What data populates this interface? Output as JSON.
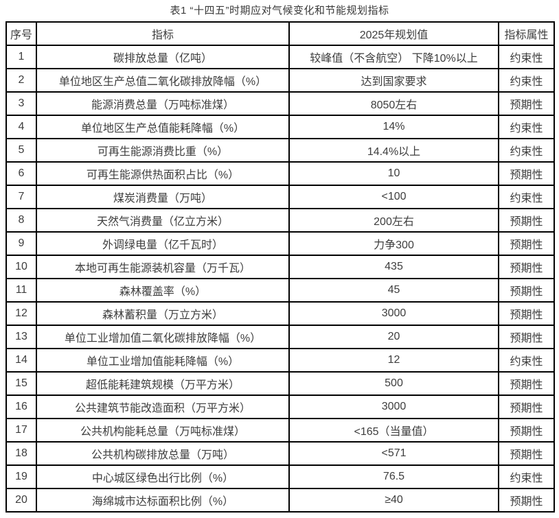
{
  "page": {
    "title": "表1 “十四五”时期应对气候变化和节能规划指标"
  },
  "table": {
    "headers": [
      "序号",
      "指标",
      "2025年规划值",
      "指标属性"
    ],
    "rows": [
      {
        "no": "1",
        "indicator": "碳排放总量（亿吨）",
        "value": "较峰值（不含航空） 下降10%以上",
        "attribute": "约束性"
      },
      {
        "no": "2",
        "indicator": "单位地区生产总值二氧化碳排放降幅（%）",
        "value": "达到国家要求",
        "attribute": "约束性"
      },
      {
        "no": "3",
        "indicator": "能源消费总量（万吨标准煤）",
        "value": "8050左右",
        "attribute": "预期性"
      },
      {
        "no": "4",
        "indicator": "单位地区生产总值能耗降幅（%）",
        "value": "14%",
        "attribute": "约束性"
      },
      {
        "no": "5",
        "indicator": "可再生能源消费比重（%）",
        "value": "14.4%以上",
        "attribute": "约束性"
      },
      {
        "no": "6",
        "indicator": "可再生能源供热面积占比（%）",
        "value": "10",
        "attribute": "预期性"
      },
      {
        "no": "7",
        "indicator": "煤炭消费量（万吨）",
        "value": "<100",
        "attribute": "约束性"
      },
      {
        "no": "8",
        "indicator": "天然气消费量（亿立方米）",
        "value": "200左右",
        "attribute": "预期性"
      },
      {
        "no": "9",
        "indicator": "外调绿电量（亿千瓦时）",
        "value": "力争300",
        "attribute": "预期性"
      },
      {
        "no": "10",
        "indicator": "本地可再生能源装机容量（万千瓦）",
        "value": "435",
        "attribute": "预期性"
      },
      {
        "no": "11",
        "indicator": "森林覆盖率（%）",
        "value": "45",
        "attribute": "预期性"
      },
      {
        "no": "12",
        "indicator": "森林蓄积量（万立方米）",
        "value": "3000",
        "attribute": "预期性"
      },
      {
        "no": "13",
        "indicator": "单位工业增加值二氧化碳排放降幅（%）",
        "value": "20",
        "attribute": "预期性"
      },
      {
        "no": "14",
        "indicator": "单位工业增加值能耗降幅（%）",
        "value": "12",
        "attribute": "约束性"
      },
      {
        "no": "15",
        "indicator": "超低能耗建筑规模（万平方米）",
        "value": "500",
        "attribute": "预期性"
      },
      {
        "no": "16",
        "indicator": "公共建筑节能改造面积（万平方米）",
        "value": "3000",
        "attribute": "预期性"
      },
      {
        "no": "17",
        "indicator": "公共机构能耗总量（万吨标准煤）",
        "value": "<165（当量值）",
        "attribute": "预期性"
      },
      {
        "no": "18",
        "indicator": "公共机构碳排放总量（万吨）",
        "value": "<571",
        "attribute": "预期性"
      },
      {
        "no": "19",
        "indicator": "中心城区绿色出行比例（%）",
        "value": "76.5",
        "attribute": "约束性"
      },
      {
        "no": "20",
        "indicator": "海绵城市达标面积比例（%）",
        "value": "≥40",
        "attribute": "预期性"
      }
    ]
  }
}
